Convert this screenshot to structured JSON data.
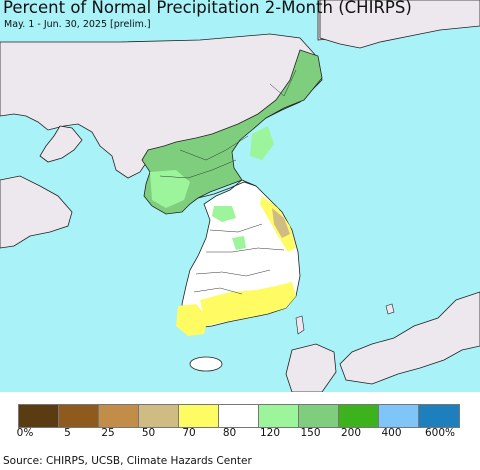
{
  "title": "Percent of Normal Precipitation 2-Month (CHIRPS)",
  "subtitle": "May. 1 - Jun. 30, 2025 [prelim.]",
  "source": "Source: CHIRPS, UCSB, Climate Hazards Center",
  "colors": {
    "ocean": "#a8f2f8",
    "land_other": "#ede8ed",
    "border": "#222222"
  },
  "legend": {
    "swatches": [
      "#5b3b12",
      "#8f5a1e",
      "#c28d48",
      "#cfbb83",
      "#fefc62",
      "#ffffff",
      "#9cf59b",
      "#7ece7e",
      "#3cb31c",
      "#7fc5f7",
      "#1e7fbd"
    ],
    "labels": [
      "0%",
      "5",
      "25",
      "50",
      "70",
      "80",
      "120",
      "150",
      "200",
      "400",
      "600%"
    ]
  }
}
